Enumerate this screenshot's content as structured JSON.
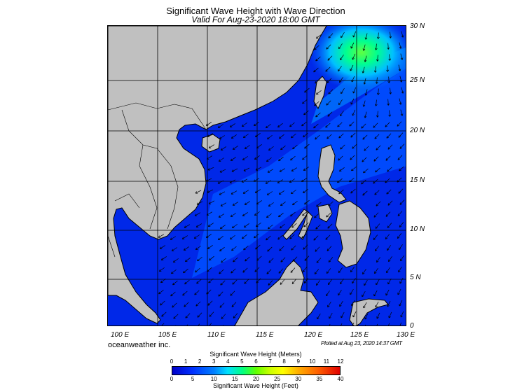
{
  "title": "Significant Wave Height with Wave Direction",
  "subtitle": "Valid For Aug-23-2020 18:00 GMT",
  "lon_labels": [
    "100 E",
    "105 E",
    "110 E",
    "115 E",
    "120 E",
    "125 E",
    "130 E"
  ],
  "lat_labels": [
    "30 N",
    "25 N",
    "20 N",
    "15 N",
    "10 N",
    "5 N",
    "0"
  ],
  "credit": "oceanweather inc.",
  "plotted": "Plotted at Aug 23, 2020 14:37 GMT",
  "colorbar": {
    "meters_title": "Significant Wave Height (Meters)",
    "meters_ticks": [
      "0",
      "1",
      "2",
      "3",
      "4",
      "5",
      "6",
      "7",
      "8",
      "9",
      "10",
      "11",
      "12"
    ],
    "feet_title": "Significant Wave Height (Feet)",
    "feet_ticks": [
      "0",
      "5",
      "10",
      "15",
      "20",
      "25",
      "30",
      "35",
      "40"
    ]
  },
  "colors": {
    "land": "#c0c0c0",
    "sea_low": "#0020e0",
    "sea_mid": "#0060ff",
    "peak": "#40ff60"
  }
}
